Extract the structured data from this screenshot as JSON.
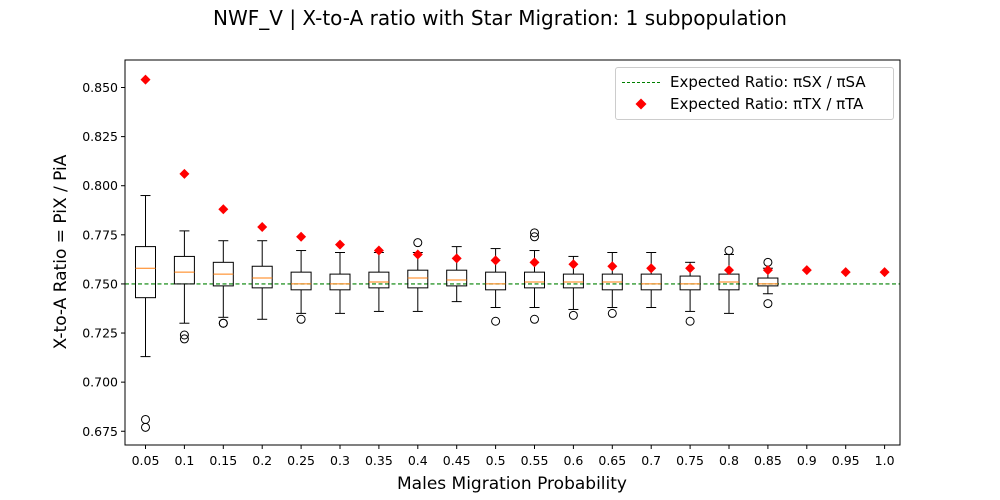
{
  "figure": {
    "title": "NWF_V | X-to-A ratio with Star Migration: 1 subpopulation"
  },
  "colors": {
    "box_edge": "#000000",
    "median": "#ff7f0e",
    "expected_line": "#008000",
    "expected_marker": "#ff0000"
  },
  "chart_data": {
    "type": "box",
    "xlabel": "Males Migration Probability",
    "ylabel": "X-to-A Ratio = PiX / PiA",
    "categories": [
      "0.05",
      "0.1",
      "0.15",
      "0.2",
      "0.25",
      "0.3",
      "0.35",
      "0.4",
      "0.45",
      "0.5",
      "0.55",
      "0.6",
      "0.65",
      "0.7",
      "0.75",
      "0.8",
      "0.85",
      "0.9",
      "0.95",
      "1.0"
    ],
    "ylim": [
      0.668,
      0.864
    ],
    "yticks": [
      "0.675",
      "0.700",
      "0.725",
      "0.750",
      "0.775",
      "0.800",
      "0.825",
      "0.850"
    ],
    "grid": false,
    "legend": {
      "placement": "top-right",
      "entries": [
        {
          "label": "Expected Ratio: πSX / πSA",
          "style": "green dashed line"
        },
        {
          "label": "Expected Ratio: πTX / πTA",
          "style": "red diamond marker"
        }
      ]
    },
    "expected_line_value": 0.75,
    "boxes": [
      {
        "x": "0.05",
        "whislo": 0.713,
        "q1": 0.743,
        "med": 0.758,
        "q3": 0.769,
        "whishi": 0.795,
        "fliers": [
          0.681,
          0.677
        ]
      },
      {
        "x": "0.1",
        "whislo": 0.73,
        "q1": 0.75,
        "med": 0.756,
        "q3": 0.764,
        "whishi": 0.777,
        "fliers": [
          0.724,
          0.722
        ]
      },
      {
        "x": "0.15",
        "whislo": 0.733,
        "q1": 0.749,
        "med": 0.755,
        "q3": 0.761,
        "whishi": 0.772,
        "fliers": [
          0.73,
          0.73
        ]
      },
      {
        "x": "0.2",
        "whislo": 0.732,
        "q1": 0.748,
        "med": 0.753,
        "q3": 0.759,
        "whishi": 0.772,
        "fliers": []
      },
      {
        "x": "0.25",
        "whislo": 0.735,
        "q1": 0.747,
        "med": 0.75,
        "q3": 0.756,
        "whishi": 0.767,
        "fliers": [
          0.732
        ]
      },
      {
        "x": "0.3",
        "whislo": 0.735,
        "q1": 0.747,
        "med": 0.75,
        "q3": 0.755,
        "whishi": 0.766,
        "fliers": []
      },
      {
        "x": "0.35",
        "whislo": 0.736,
        "q1": 0.748,
        "med": 0.751,
        "q3": 0.756,
        "whishi": 0.766,
        "fliers": []
      },
      {
        "x": "0.4",
        "whislo": 0.736,
        "q1": 0.748,
        "med": 0.753,
        "q3": 0.757,
        "whishi": 0.766,
        "fliers": [
          0.771
        ]
      },
      {
        "x": "0.45",
        "whislo": 0.741,
        "q1": 0.749,
        "med": 0.752,
        "q3": 0.757,
        "whishi": 0.769,
        "fliers": []
      },
      {
        "x": "0.5",
        "whislo": 0.738,
        "q1": 0.747,
        "med": 0.75,
        "q3": 0.756,
        "whishi": 0.768,
        "fliers": [
          0.731
        ]
      },
      {
        "x": "0.55",
        "whislo": 0.738,
        "q1": 0.748,
        "med": 0.751,
        "q3": 0.756,
        "whishi": 0.767,
        "fliers": [
          0.776,
          0.774,
          0.732
        ]
      },
      {
        "x": "0.6",
        "whislo": 0.737,
        "q1": 0.748,
        "med": 0.751,
        "q3": 0.755,
        "whishi": 0.764,
        "fliers": [
          0.734
        ]
      },
      {
        "x": "0.65",
        "whislo": 0.738,
        "q1": 0.747,
        "med": 0.751,
        "q3": 0.755,
        "whishi": 0.766,
        "fliers": [
          0.735
        ]
      },
      {
        "x": "0.7",
        "whislo": 0.738,
        "q1": 0.747,
        "med": 0.75,
        "q3": 0.755,
        "whishi": 0.766,
        "fliers": []
      },
      {
        "x": "0.75",
        "whislo": 0.736,
        "q1": 0.747,
        "med": 0.75,
        "q3": 0.754,
        "whishi": 0.761,
        "fliers": [
          0.731
        ]
      },
      {
        "x": "0.8",
        "whislo": 0.735,
        "q1": 0.747,
        "med": 0.751,
        "q3": 0.755,
        "whishi": 0.765,
        "fliers": [
          0.767
        ]
      },
      {
        "x": "0.85",
        "whislo": 0.745,
        "q1": 0.749,
        "med": 0.75,
        "q3": 0.753,
        "whishi": 0.758,
        "fliers": [
          0.761,
          0.74
        ]
      }
    ],
    "expected_ratio_markers": [
      {
        "x": "0.05",
        "y": 0.854
      },
      {
        "x": "0.1",
        "y": 0.806
      },
      {
        "x": "0.15",
        "y": 0.788
      },
      {
        "x": "0.2",
        "y": 0.779
      },
      {
        "x": "0.25",
        "y": 0.774
      },
      {
        "x": "0.3",
        "y": 0.77
      },
      {
        "x": "0.35",
        "y": 0.767
      },
      {
        "x": "0.4",
        "y": 0.765
      },
      {
        "x": "0.45",
        "y": 0.763
      },
      {
        "x": "0.5",
        "y": 0.762
      },
      {
        "x": "0.55",
        "y": 0.761
      },
      {
        "x": "0.6",
        "y": 0.76
      },
      {
        "x": "0.65",
        "y": 0.759
      },
      {
        "x": "0.7",
        "y": 0.758
      },
      {
        "x": "0.75",
        "y": 0.758
      },
      {
        "x": "0.8",
        "y": 0.757
      },
      {
        "x": "0.85",
        "y": 0.757
      },
      {
        "x": "0.9",
        "y": 0.757
      },
      {
        "x": "0.95",
        "y": 0.756
      },
      {
        "x": "1.0",
        "y": 0.756
      }
    ]
  }
}
